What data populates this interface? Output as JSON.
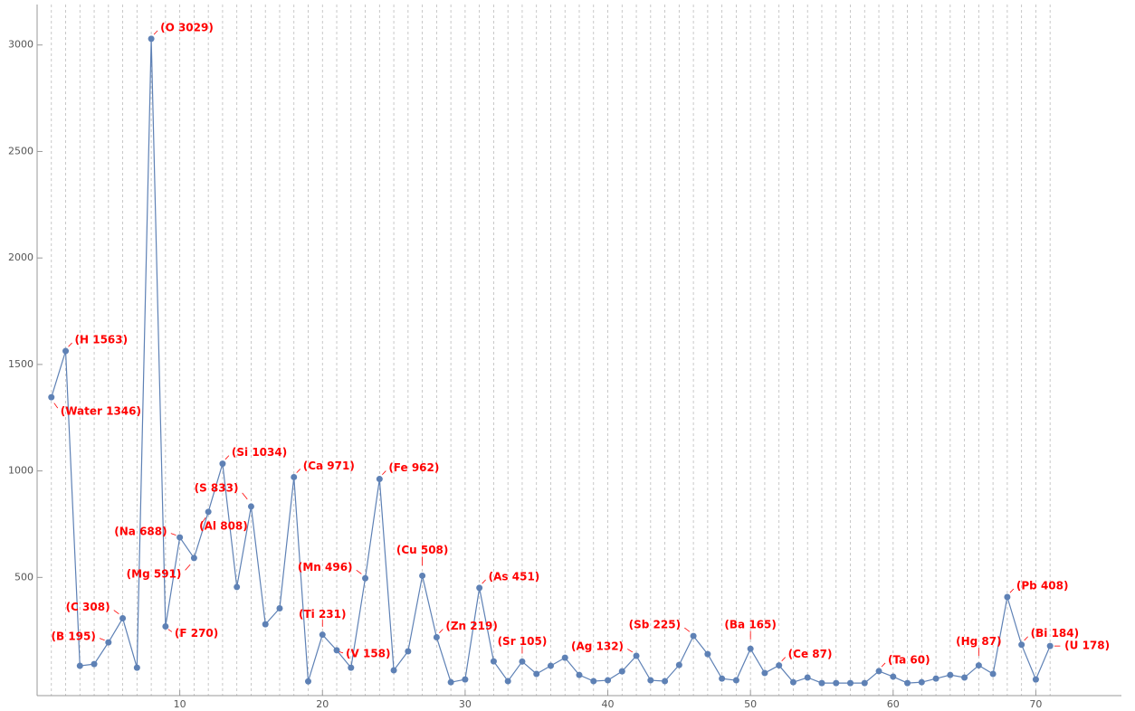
{
  "chart_data": {
    "type": "line",
    "x": [
      1,
      2,
      3,
      4,
      5,
      6,
      7,
      8,
      9,
      10,
      11,
      12,
      13,
      14,
      15,
      16,
      17,
      18,
      19,
      20,
      21,
      22,
      23,
      24,
      25,
      26,
      27,
      28,
      29,
      30,
      31,
      32,
      33,
      34,
      35,
      36,
      37,
      38,
      39,
      40,
      41,
      42,
      43,
      44,
      45,
      46,
      47,
      48,
      49,
      50,
      51,
      52,
      53,
      54,
      55,
      56,
      57,
      58,
      59,
      60,
      61,
      62,
      63,
      64,
      65,
      66,
      67,
      68,
      69,
      70,
      71
    ],
    "series": [
      {
        "color": "#5e81b5",
        "values": [
          1346,
          1563,
          85,
          93,
          195,
          308,
          76,
          3029,
          270,
          688,
          591,
          808,
          1034,
          455,
          833,
          280,
          355,
          971,
          12,
          231,
          158,
          76,
          496,
          962,
          64,
          153,
          508,
          219,
          8,
          21,
          451,
          106,
          13,
          105,
          47,
          85,
          123,
          42,
          13,
          17,
          59,
          132,
          17,
          13,
          89,
          225,
          140,
          25,
          17,
          165,
          51,
          87,
          8,
          30,
          4,
          4,
          4,
          4,
          60,
          34,
          4,
          8,
          25,
          42,
          30,
          87,
          47,
          408,
          184,
          21,
          178
        ],
        "value_labels": [
          "(Water 1346)",
          "(H 1563)",
          null,
          null,
          "(B 195)",
          "(C 308)",
          null,
          "(O 3029)",
          "(F 270)",
          "(Na 688)",
          "(Mg 591)",
          "(Al 808)",
          "(Si 1034)",
          null,
          "(S 833)",
          null,
          null,
          "(Ca 971)",
          null,
          "(Ti 231)",
          "(V 158)",
          null,
          "(Mn 496)",
          "(Fe 962)",
          null,
          null,
          "(Cu 508)",
          "(Zn 219)",
          null,
          null,
          "(As 451)",
          null,
          null,
          "(Sr 105)",
          null,
          null,
          null,
          null,
          null,
          null,
          null,
          "(Ag 132)",
          null,
          null,
          null,
          "(Sb 225)",
          null,
          null,
          null,
          "(Ba 165)",
          null,
          "(Ce 87)",
          null,
          null,
          null,
          null,
          null,
          null,
          "(Ta 60)",
          null,
          null,
          null,
          null,
          null,
          null,
          "(Hg 87)",
          null,
          "(Pb 408)",
          "(Bi 184)",
          null,
          "(U 178)"
        ],
        "label_color": "#ff0000"
      }
    ],
    "xlim": [
      0,
      76
    ],
    "ylim": [
      -55,
      3190
    ],
    "xticks": [
      10,
      20,
      30,
      40,
      50,
      60,
      70
    ],
    "yticks": [
      500,
      1000,
      1500,
      2000,
      2500,
      3000
    ],
    "grid": "x"
  }
}
